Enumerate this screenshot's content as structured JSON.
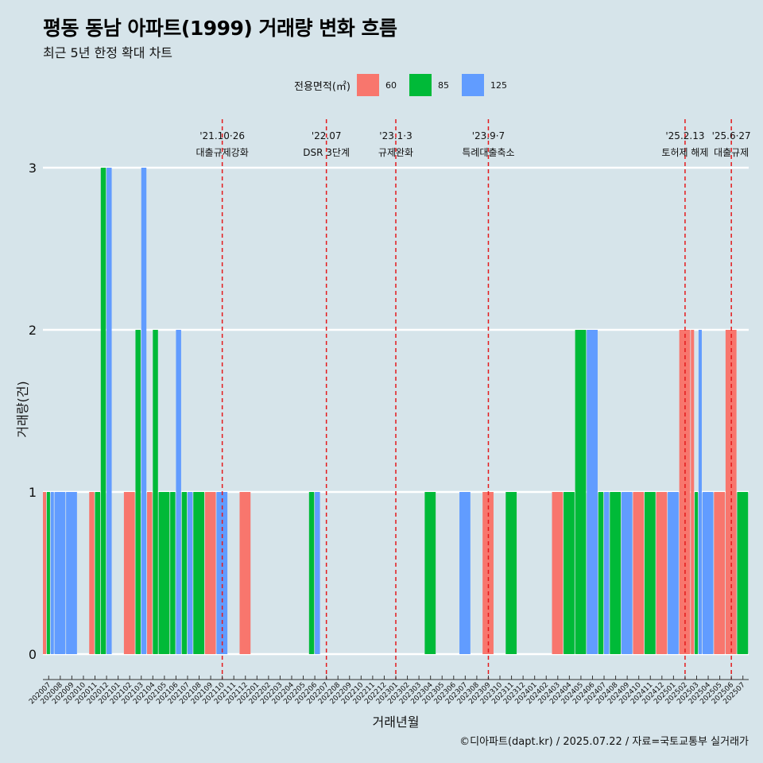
{
  "title": "평동 동남 아파트(1999) 거래량 변화 흐름",
  "subtitle": "최근 5년 한정 확대 차트",
  "legend": {
    "title": "전용면적(㎡)",
    "items": [
      {
        "label": "60",
        "color": "#f8766d"
      },
      {
        "label": "85",
        "color": "#00ba38"
      },
      {
        "label": "125",
        "color": "#619cff"
      }
    ]
  },
  "caption": "©디아파트(dapt.kr) / 2025.07.22 / 자료=국토교통부 실거래가",
  "chart_data": {
    "type": "bar",
    "xlabel": "거래년월",
    "ylabel": "거래량(건)",
    "ylim": [
      0,
      3
    ],
    "yticks": [
      0,
      1,
      2,
      3
    ],
    "grid": true,
    "categories": [
      "202007",
      "202008",
      "202009",
      "202010",
      "202011",
      "202012",
      "202101",
      "202102",
      "202103",
      "202104",
      "202105",
      "202106",
      "202107",
      "202108",
      "202109",
      "202110",
      "202111",
      "202112",
      "202201",
      "202202",
      "202203",
      "202204",
      "202205",
      "202206",
      "202207",
      "202208",
      "202209",
      "202210",
      "202211",
      "202212",
      "202301",
      "202302",
      "202303",
      "202304",
      "202305",
      "202306",
      "202307",
      "202308",
      "202309",
      "202310",
      "202311",
      "202312",
      "202401",
      "202402",
      "202403",
      "202404",
      "202405",
      "202406",
      "202407",
      "202408",
      "202409",
      "202410",
      "202411",
      "202412",
      "202501",
      "202502",
      "202503",
      "202504",
      "202505",
      "202506",
      "202507"
    ],
    "series": [
      {
        "name": "60",
        "color": "#f8766d",
        "values": [
          1,
          0,
          0,
          0,
          1,
          0,
          0,
          1,
          0,
          1,
          0,
          0,
          0,
          0,
          1,
          0,
          0,
          1,
          0,
          0,
          0,
          0,
          0,
          0,
          0,
          0,
          0,
          0,
          0,
          0,
          0,
          0,
          0,
          0,
          0,
          0,
          0,
          0,
          1,
          0,
          0,
          0,
          0,
          0,
          1,
          0,
          0,
          0,
          0,
          0,
          0,
          1,
          0,
          1,
          0,
          2,
          2,
          0,
          1,
          2,
          0
        ]
      },
      {
        "name": "85",
        "color": "#00ba38",
        "values": [
          1,
          0,
          0,
          0,
          1,
          3,
          0,
          0,
          2,
          2,
          1,
          1,
          1,
          1,
          0,
          0,
          0,
          0,
          0,
          0,
          0,
          0,
          0,
          1,
          0,
          0,
          0,
          0,
          0,
          0,
          0,
          0,
          0,
          1,
          0,
          0,
          0,
          0,
          0,
          0,
          1,
          0,
          0,
          0,
          0,
          1,
          2,
          0,
          1,
          1,
          0,
          0,
          1,
          0,
          0,
          0,
          1,
          0,
          0,
          0,
          1
        ]
      },
      {
        "name": "125",
        "color": "#619cff",
        "values": [
          1,
          1,
          1,
          0,
          0,
          3,
          0,
          0,
          3,
          0,
          0,
          2,
          1,
          0,
          0,
          1,
          0,
          0,
          0,
          0,
          0,
          0,
          0,
          1,
          0,
          0,
          0,
          0,
          0,
          0,
          0,
          0,
          0,
          0,
          0,
          0,
          1,
          0,
          0,
          0,
          0,
          0,
          0,
          0,
          0,
          0,
          0,
          2,
          1,
          0,
          1,
          0,
          0,
          0,
          1,
          0,
          2,
          1,
          0,
          0,
          0
        ]
      }
    ],
    "annotations": [
      {
        "x": "202110",
        "line1": "'21.10·26",
        "line2": "대출규제강화"
      },
      {
        "x": "202207",
        "line1": "'22.07",
        "line2": "DSR 3단계"
      },
      {
        "x": "202301",
        "line1": "'23.1·3",
        "line2": "규제완화"
      },
      {
        "x": "202309",
        "line1": "'23.9·7",
        "line2": "특례대출축소"
      },
      {
        "x": "202502",
        "line1": "'25.2.13",
        "line2": "토허제 해제"
      },
      {
        "x": "202506",
        "line1": "'25.6·27",
        "line2": "대출규제"
      }
    ]
  }
}
